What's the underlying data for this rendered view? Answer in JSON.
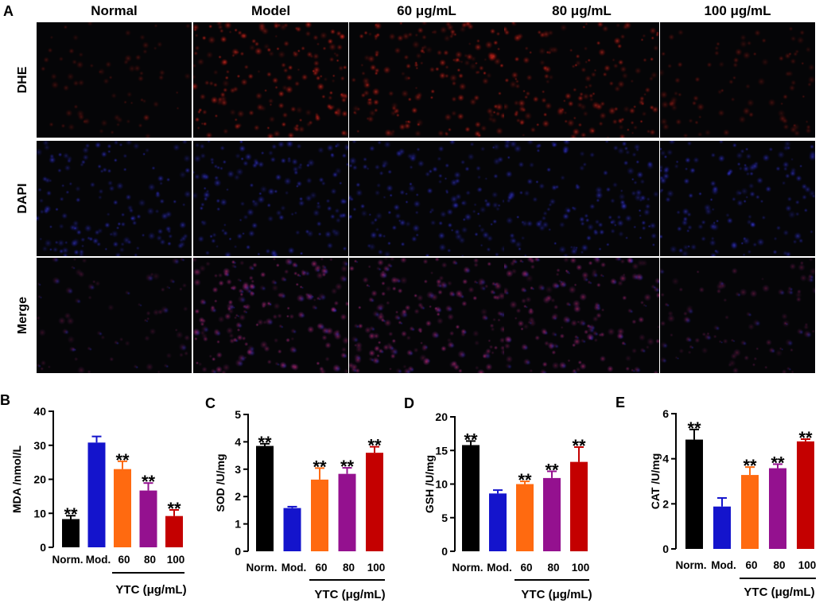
{
  "panel_a": {
    "letter": "A",
    "columns": [
      "Normal",
      "Model",
      "60 μg/mL",
      "80 μg/mL",
      "100 μg/mL"
    ],
    "rows": [
      {
        "label": "DHE",
        "stain": "red"
      },
      {
        "label": "DAPI",
        "stain": "blue"
      },
      {
        "label": "Merge",
        "stain": "merge"
      }
    ],
    "column_intensity": [
      0.18,
      0.85,
      0.8,
      0.72,
      0.3
    ],
    "colors": {
      "red": "#c81414",
      "blue": "#2828c8",
      "background": "#050507"
    }
  },
  "shared": {
    "categories": [
      "Norm.",
      "Mod.",
      "60",
      "80",
      "100"
    ],
    "group_label": "YTC (μg/mL)",
    "bar_colors": [
      "#000000",
      "#1414cc",
      "#ff6a10",
      "#94118f",
      "#c40000"
    ],
    "significance": "**"
  },
  "chart_data": [
    {
      "type": "bar",
      "letter": "B",
      "title": "",
      "xlabel": "",
      "ylabel": "MDA /nmol/L",
      "ylim": [
        0,
        40
      ],
      "yticks": [
        0,
        10,
        20,
        30,
        40
      ],
      "categories": [
        "Norm.",
        "Mod.",
        "60",
        "80",
        "100"
      ],
      "values": [
        8.3,
        30.8,
        23.0,
        16.7,
        9.2
      ],
      "errors": [
        1.0,
        1.8,
        2.3,
        2.2,
        1.8
      ],
      "stars": [
        true,
        false,
        true,
        true,
        true
      ]
    },
    {
      "type": "bar",
      "letter": "C",
      "title": "",
      "xlabel": "",
      "ylabel": "SOD /U/mg",
      "ylim": [
        0,
        5
      ],
      "yticks": [
        0,
        1,
        2,
        3,
        4,
        5
      ],
      "categories": [
        "Norm.",
        "Mod.",
        "60",
        "80",
        "100"
      ],
      "values": [
        3.85,
        1.58,
        2.62,
        2.83,
        3.6
      ],
      "errors": [
        0.08,
        0.05,
        0.42,
        0.22,
        0.22
      ],
      "stars": [
        true,
        false,
        true,
        true,
        true
      ]
    },
    {
      "type": "bar",
      "letter": "D",
      "title": "",
      "xlabel": "",
      "ylabel": "GSH /U/mg",
      "ylim": [
        0,
        20
      ],
      "yticks": [
        0,
        5,
        10,
        15,
        20
      ],
      "categories": [
        "Norm.",
        "Mod.",
        "60",
        "80",
        "100"
      ],
      "values": [
        15.8,
        8.6,
        10.0,
        10.9,
        13.3
      ],
      "errors": [
        0.6,
        0.5,
        0.4,
        1.0,
        2.2
      ],
      "stars": [
        true,
        false,
        true,
        true,
        true
      ]
    },
    {
      "type": "bar",
      "letter": "E",
      "title": "",
      "xlabel": "",
      "ylabel": "CAT /U/mg",
      "ylim": [
        0,
        6
      ],
      "yticks": [
        0,
        2,
        4,
        6
      ],
      "categories": [
        "Norm.",
        "Mod.",
        "60",
        "80",
        "100"
      ],
      "values": [
        4.85,
        1.88,
        3.28,
        3.58,
        4.77
      ],
      "errors": [
        0.45,
        0.38,
        0.35,
        0.18,
        0.1
      ],
      "stars": [
        true,
        false,
        true,
        true,
        true
      ]
    }
  ]
}
